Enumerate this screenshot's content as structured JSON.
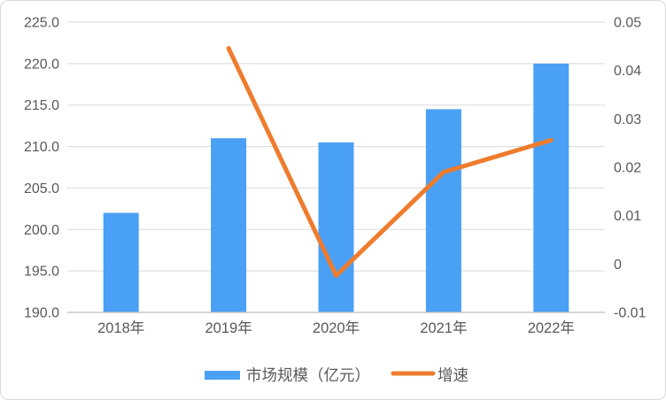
{
  "chart_data": {
    "type": "combo_bar_line",
    "title": "",
    "categories": [
      "2018年",
      "2019年",
      "2020年",
      "2021年",
      "2022年"
    ],
    "series": [
      {
        "name": "市场规模（亿元）",
        "type": "bar",
        "axis": "left",
        "color": "#4aa0f5",
        "values": [
          202.0,
          211.0,
          210.5,
          214.5,
          220.0
        ]
      },
      {
        "name": "增速",
        "type": "line",
        "axis": "right",
        "color": "#ee7c2e",
        "values": [
          null,
          0.0446,
          -0.0024,
          0.019,
          0.0256
        ]
      }
    ],
    "left_axis": {
      "min": 190,
      "max": 225,
      "step": 5,
      "tick_labels": [
        "225.0",
        "220.0",
        "215.0",
        "210.0",
        "205.0",
        "200.0",
        "195.0",
        "190.0"
      ]
    },
    "right_axis": {
      "min": -0.01,
      "max": 0.05,
      "step": 0.01,
      "tick_labels": [
        "0.05",
        "0.04",
        "0.03",
        "0.02",
        "0.01",
        "0",
        "-0.01"
      ]
    },
    "grid": true,
    "legend_position": "bottom",
    "legend": {
      "items": [
        {
          "label": "市场规模（亿元）",
          "swatch": "bar",
          "color": "#4aa0f5"
        },
        {
          "label": "增速",
          "swatch": "line",
          "color": "#ee7c2e"
        }
      ]
    }
  },
  "colors": {
    "background": "#ffffff",
    "frame_border": "#d9d9d9",
    "gridline": "#d9d9d9",
    "axis_line": "#bfbfbf",
    "tick_text": "#595959",
    "legend_text": "#595959",
    "bar": "#4aa0f5",
    "line": "#ee7c2e"
  }
}
